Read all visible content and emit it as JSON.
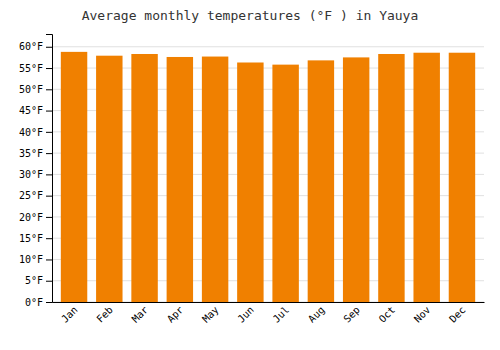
{
  "chart_data": {
    "type": "bar",
    "title": "Average monthly temperatures (°F ) in Yauya",
    "categories": [
      "Jan",
      "Feb",
      "Mar",
      "Apr",
      "May",
      "Jun",
      "Jul",
      "Aug",
      "Sep",
      "Oct",
      "Nov",
      "Dec"
    ],
    "values": [
      58.8,
      57.9,
      58.3,
      57.6,
      57.7,
      56.3,
      55.8,
      56.8,
      57.5,
      58.3,
      58.6,
      58.6
    ],
    "color": "#F08000",
    "ylim": [
      0,
      63
    ],
    "yticks": [
      {
        "value": 0,
        "label": "0°F"
      },
      {
        "value": 5,
        "label": "5°F"
      },
      {
        "value": 10,
        "label": "10°F"
      },
      {
        "value": 15,
        "label": "15°F"
      },
      {
        "value": 20,
        "label": "20°F"
      },
      {
        "value": 25,
        "label": "25°F"
      },
      {
        "value": 30,
        "label": "30°F"
      },
      {
        "value": 35,
        "label": "35°F"
      },
      {
        "value": 40,
        "label": "40°F"
      },
      {
        "value": 45,
        "label": "45°F"
      },
      {
        "value": 50,
        "label": "50°F"
      },
      {
        "value": 55,
        "label": "55°F"
      },
      {
        "value": 60,
        "label": "60°F"
      }
    ],
    "grid": true
  }
}
